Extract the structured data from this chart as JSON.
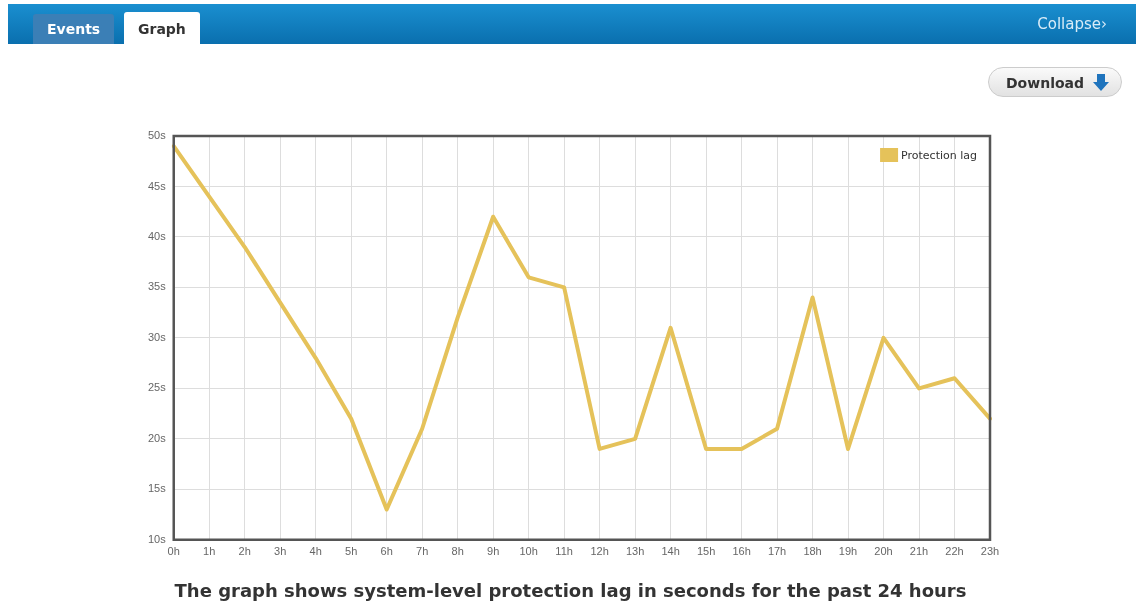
{
  "chart_data": {
    "type": "line",
    "title": "The graph shows system-level protection lag in seconds for the past 24 hours",
    "categories": [
      "0h",
      "1h",
      "2h",
      "3h",
      "4h",
      "5h",
      "6h",
      "7h",
      "8h",
      "9h",
      "10h",
      "11h",
      "12h",
      "13h",
      "14h",
      "15h",
      "16h",
      "17h",
      "18h",
      "19h",
      "20h",
      "21h",
      "22h",
      "23h"
    ],
    "series": [
      {
        "name": "Protection lag",
        "color": "#e5c25a",
        "values": [
          49,
          44,
          39,
          33.5,
          28,
          22,
          13,
          21,
          32,
          42,
          36,
          35,
          19,
          20,
          31,
          19,
          19,
          21,
          34,
          19,
          30,
          25,
          26,
          22
        ]
      }
    ],
    "ylim": [
      10,
      50
    ],
    "yticks": [
      {
        "value": 10,
        "label": "10s"
      },
      {
        "value": 15,
        "label": "15s"
      },
      {
        "value": 20,
        "label": "20s"
      },
      {
        "value": 25,
        "label": "25s"
      },
      {
        "value": 30,
        "label": "30s"
      },
      {
        "value": 35,
        "label": "35s"
      },
      {
        "value": 40,
        "label": "40s"
      },
      {
        "value": 45,
        "label": "45s"
      },
      {
        "value": 50,
        "label": "50s"
      }
    ],
    "grid": true,
    "legend": "top right",
    "marker": "none",
    "line_style": "solid",
    "annotations": [
      "Events",
      "Graph",
      "Collapse›",
      "Download"
    ]
  }
}
